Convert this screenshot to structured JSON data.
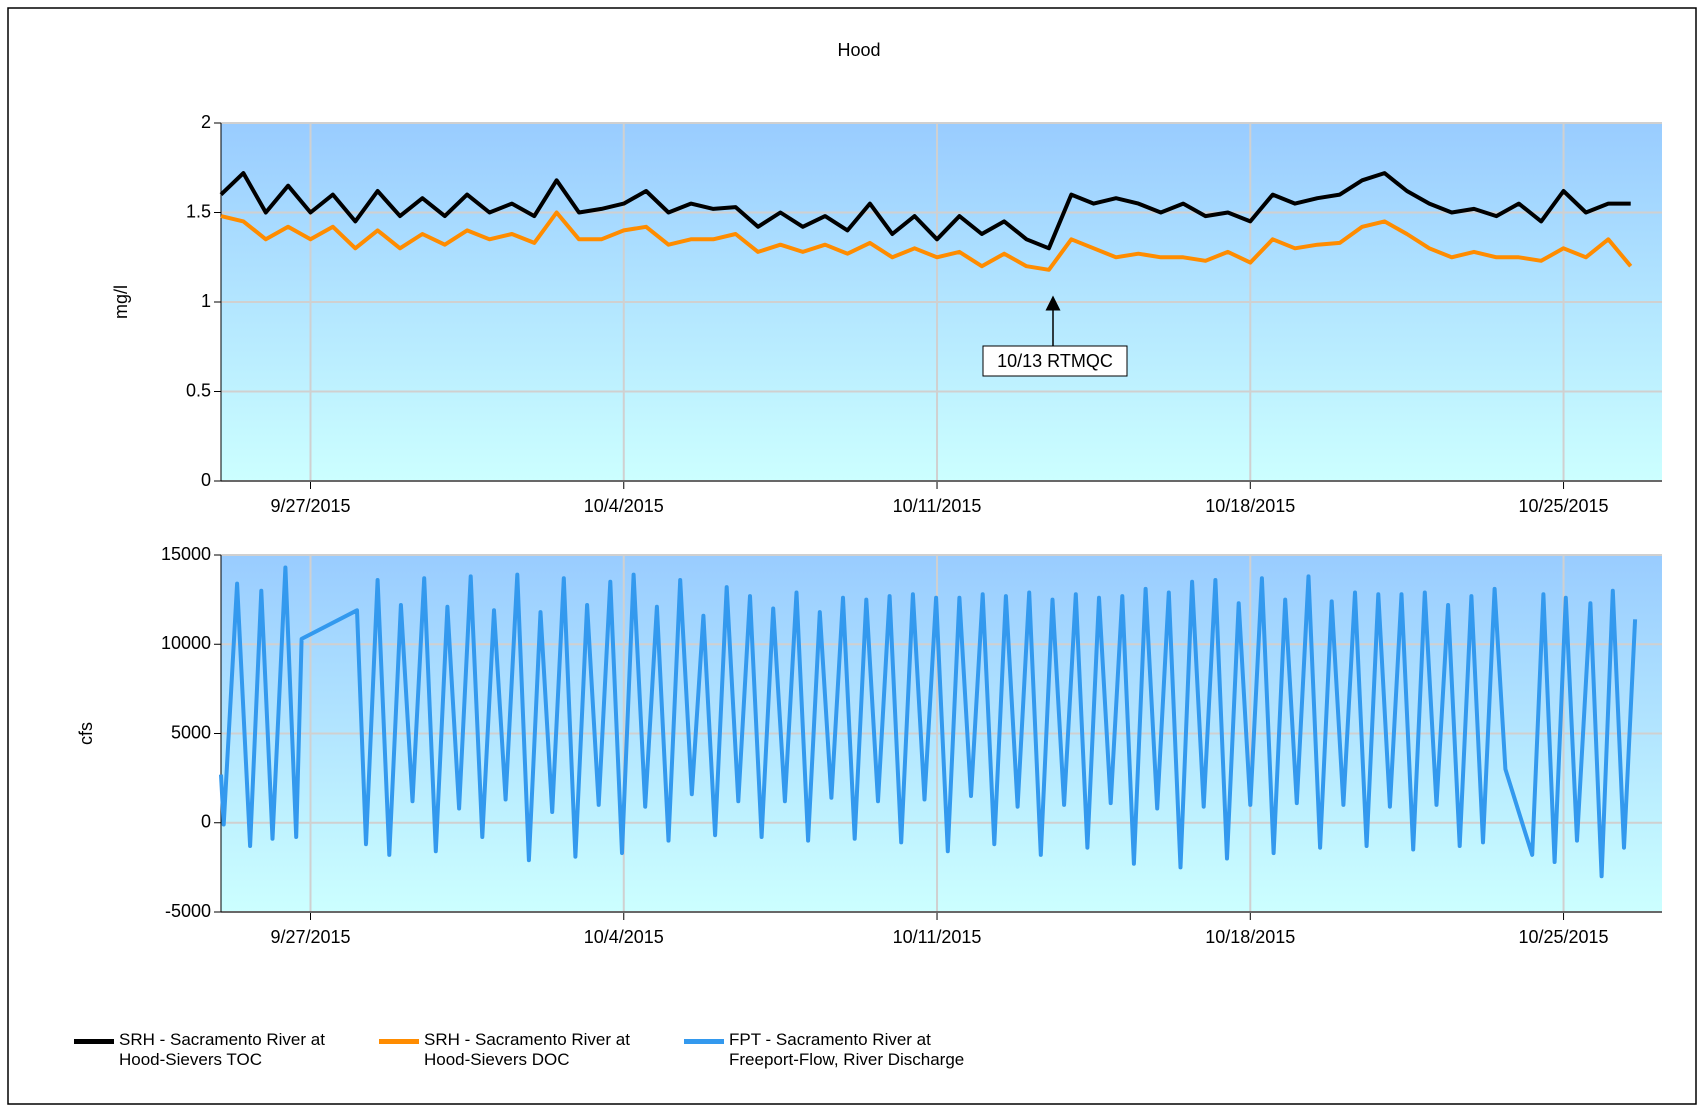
{
  "chart_data": [
    {
      "type": "line",
      "title": "Hood",
      "y_label": "mg/l",
      "annotation": "10/13 RTMQC",
      "x": [
        268,
        268.5,
        269,
        269.5,
        270,
        270.5,
        271,
        271.5,
        272,
        272.5,
        273,
        273.5,
        274,
        274.5,
        275,
        275.5,
        276,
        276.5,
        277,
        277.5,
        278,
        278.5,
        279,
        279.5,
        280,
        280.5,
        281,
        281.5,
        282,
        282.5,
        283,
        283.5,
        284,
        284.5,
        285,
        285.5,
        286,
        286.5,
        287,
        287.5,
        288,
        288.5,
        289,
        289.5,
        290,
        290.5,
        291,
        291.5,
        292,
        292.5,
        293,
        293.5,
        294,
        294.5,
        295,
        295.5,
        296,
        296.5,
        297,
        297.5,
        298,
        298.5,
        299,
        299.5
      ],
      "xlim": [
        268,
        300.2
      ],
      "xticks": [
        {
          "value": 270,
          "label": "9/27/2015"
        },
        {
          "value": 277,
          "label": "10/4/2015"
        },
        {
          "value": 284,
          "label": "10/11/2015"
        },
        {
          "value": 291,
          "label": "10/18/2015"
        },
        {
          "value": 298,
          "label": "10/25/2015"
        }
      ],
      "ylim": [
        0,
        2
      ],
      "yticks": [
        0,
        0.5,
        1,
        1.5,
        2
      ],
      "grid": true,
      "series": [
        {
          "name": "SRH - Sacramento River at Hood-Sievers TOC",
          "color": "#000000",
          "values": [
            1.6,
            1.72,
            1.5,
            1.65,
            1.5,
            1.6,
            1.45,
            1.62,
            1.48,
            1.58,
            1.48,
            1.6,
            1.5,
            1.55,
            1.48,
            1.68,
            1.5,
            1.52,
            1.55,
            1.62,
            1.5,
            1.55,
            1.52,
            1.53,
            1.42,
            1.5,
            1.42,
            1.48,
            1.4,
            1.55,
            1.38,
            1.48,
            1.35,
            1.48,
            1.38,
            1.45,
            1.35,
            1.3,
            1.6,
            1.55,
            1.58,
            1.55,
            1.5,
            1.55,
            1.48,
            1.5,
            1.45,
            1.6,
            1.55,
            1.58,
            1.6,
            1.68,
            1.72,
            1.62,
            1.55,
            1.5,
            1.52,
            1.48,
            1.55,
            1.45,
            1.62,
            1.5,
            1.55,
            1.55
          ]
        },
        {
          "name": "SRH - Sacramento River at Hood-Sievers DOC",
          "color": "#ff8c00",
          "values": [
            1.48,
            1.45,
            1.35,
            1.42,
            1.35,
            1.42,
            1.3,
            1.4,
            1.3,
            1.38,
            1.32,
            1.4,
            1.35,
            1.38,
            1.33,
            1.5,
            1.35,
            1.35,
            1.4,
            1.42,
            1.32,
            1.35,
            1.35,
            1.38,
            1.28,
            1.32,
            1.28,
            1.32,
            1.27,
            1.33,
            1.25,
            1.3,
            1.25,
            1.28,
            1.2,
            1.27,
            1.2,
            1.18,
            1.35,
            1.3,
            1.25,
            1.27,
            1.25,
            1.25,
            1.23,
            1.28,
            1.22,
            1.35,
            1.3,
            1.32,
            1.33,
            1.42,
            1.45,
            1.38,
            1.3,
            1.25,
            1.28,
            1.25,
            1.25,
            1.23,
            1.3,
            1.25,
            1.35,
            1.2
          ]
        }
      ]
    },
    {
      "type": "line",
      "y_label": "cfs",
      "x": [
        268,
        268.06,
        268.36,
        268.65,
        268.9,
        269.15,
        269.44,
        269.68,
        269.8,
        271.04,
        271.24,
        271.5,
        271.76,
        272.02,
        272.28,
        272.54,
        272.8,
        273.06,
        273.32,
        273.58,
        273.84,
        274.1,
        274.36,
        274.62,
        274.88,
        275.14,
        275.4,
        275.66,
        275.92,
        276.18,
        276.44,
        276.7,
        276.96,
        277.22,
        277.48,
        277.74,
        278,
        278.26,
        278.52,
        278.78,
        279.04,
        279.3,
        279.56,
        279.82,
        280.08,
        280.34,
        280.6,
        280.86,
        281.12,
        281.38,
        281.64,
        281.9,
        282.16,
        282.42,
        282.68,
        282.94,
        283.2,
        283.46,
        283.72,
        283.98,
        284.24,
        284.5,
        284.76,
        285.02,
        285.28,
        285.54,
        285.8,
        286.06,
        286.32,
        286.58,
        286.84,
        287.1,
        287.36,
        287.62,
        287.88,
        288.14,
        288.4,
        288.66,
        288.92,
        289.18,
        289.44,
        289.7,
        289.96,
        290.22,
        290.48,
        290.74,
        291,
        291.26,
        291.52,
        291.78,
        292.04,
        292.3,
        292.56,
        292.82,
        293.08,
        293.34,
        293.6,
        293.86,
        294.12,
        294.38,
        294.64,
        294.9,
        295.16,
        295.42,
        295.68,
        295.94,
        296.2,
        296.46,
        296.7,
        297.3,
        297.55,
        297.8,
        298.05,
        298.3,
        298.6,
        298.85,
        299.1,
        299.35,
        299.6
      ],
      "xlim": [
        268,
        300.2
      ],
      "xticks": [
        {
          "value": 270,
          "label": "9/27/2015"
        },
        {
          "value": 277,
          "label": "10/4/2015"
        },
        {
          "value": 284,
          "label": "10/11/2015"
        },
        {
          "value": 291,
          "label": "10/18/2015"
        },
        {
          "value": 298,
          "label": "10/25/2015"
        }
      ],
      "ylim": [
        -5000,
        15000
      ],
      "yticks": [
        -5000,
        0,
        5000,
        10000,
        15000
      ],
      "grid": true,
      "series": [
        {
          "name": "FPT - Sacramento River at Freeport-Flow, River Discharge",
          "color": "#3399ee",
          "values": [
            2700,
            -100,
            13400,
            -1300,
            13000,
            -900,
            14300,
            -800,
            10300,
            11900,
            -1200,
            13600,
            -1800,
            12200,
            1200,
            13700,
            -1600,
            12100,
            800,
            13800,
            -800,
            11900,
            1300,
            13900,
            -2100,
            11800,
            600,
            13700,
            -1900,
            12200,
            1000,
            13500,
            -1700,
            13900,
            900,
            12100,
            -1000,
            13600,
            1600,
            11600,
            -700,
            13200,
            1200,
            12700,
            -800,
            12000,
            1200,
            12900,
            -1000,
            11800,
            1400,
            12600,
            -900,
            12500,
            1200,
            12700,
            -1100,
            12800,
            1300,
            12600,
            -1600,
            12600,
            1500,
            12800,
            -1200,
            12700,
            900,
            12900,
            -1800,
            12500,
            1000,
            12800,
            -1400,
            12600,
            1100,
            12700,
            -2300,
            13100,
            800,
            12900,
            -2500,
            13500,
            900,
            13600,
            -2000,
            12300,
            1000,
            13700,
            -1700,
            12500,
            1100,
            13800,
            -1400,
            12400,
            1000,
            12900,
            -1300,
            12800,
            900,
            12800,
            -1500,
            12900,
            1000,
            12200,
            -1300,
            12700,
            -1100,
            13100,
            3000,
            -1800,
            12800,
            -2200,
            12600,
            -1000,
            12300,
            -3000,
            13000,
            -1400,
            11400
          ]
        }
      ]
    }
  ]
}
